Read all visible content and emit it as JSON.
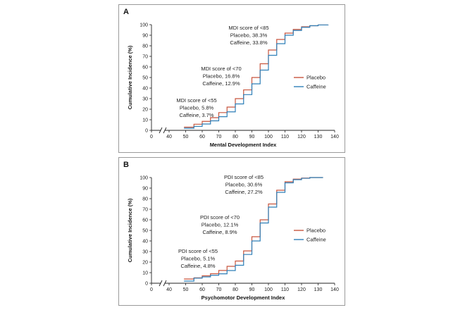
{
  "chart_data": [
    {
      "panel_label": "A",
      "type": "line",
      "step": true,
      "xlabel": "Mental Development Index",
      "ylabel": "Cumulative Incidence (%)",
      "xlim": [
        0,
        140
      ],
      "ylim": [
        0,
        100
      ],
      "x_ticks": [
        0,
        40,
        50,
        60,
        70,
        80,
        90,
        100,
        110,
        120,
        130,
        140
      ],
      "y_ticks": [
        0,
        10,
        20,
        30,
        40,
        50,
        60,
        70,
        80,
        90,
        100
      ],
      "axis_break_between": [
        0,
        40
      ],
      "grid": false,
      "legend_position": "right",
      "colors": {
        "Placebo": "#c8553d",
        "Caffeine": "#2e7fb8"
      },
      "series": [
        {
          "name": "Placebo",
          "x": [
            49,
            55,
            60,
            65,
            70,
            75,
            80,
            85,
            90,
            95,
            100,
            105,
            110,
            115,
            120,
            125,
            130,
            136
          ],
          "y": [
            3,
            5.8,
            8.5,
            12,
            16.8,
            22,
            30,
            38.3,
            50,
            63,
            76,
            86,
            92,
            95.5,
            98,
            99,
            99.7,
            100
          ]
        },
        {
          "name": "Caffeine",
          "x": [
            49,
            55,
            60,
            65,
            70,
            75,
            80,
            85,
            90,
            95,
            100,
            105,
            110,
            115,
            120,
            125,
            130,
            136
          ],
          "y": [
            2,
            3.7,
            6,
            9,
            12.9,
            17.5,
            25,
            33.8,
            44,
            57,
            71,
            82,
            90,
            94.5,
            97.5,
            99,
            99.7,
            100
          ]
        }
      ],
      "annotations": [
        {
          "lines": [
            "MDI score of <85",
            "Placebo, 38.3%",
            "Caffeine, 33.8%"
          ]
        },
        {
          "lines": [
            "MDI score of <70",
            "Placebo, 16.8%",
            "Caffeine, 12.9%"
          ]
        },
        {
          "lines": [
            "MDI score of <55",
            "Placebo, 5.8%",
            "Caffeine, 3.7%"
          ]
        }
      ]
    },
    {
      "panel_label": "B",
      "type": "line",
      "step": true,
      "xlabel": "Psychomotor Development Index",
      "ylabel": "Cumulative Incidence (%)",
      "xlim": [
        0,
        140
      ],
      "ylim": [
        0,
        100
      ],
      "x_ticks": [
        0,
        40,
        50,
        60,
        70,
        80,
        90,
        100,
        110,
        120,
        130,
        140
      ],
      "y_ticks": [
        0,
        10,
        20,
        30,
        40,
        50,
        60,
        70,
        80,
        90,
        100
      ],
      "axis_break_between": [
        0,
        40
      ],
      "grid": false,
      "legend_position": "right",
      "colors": {
        "Placebo": "#c8553d",
        "Caffeine": "#2e7fb8"
      },
      "series": [
        {
          "name": "Placebo",
          "x": [
            49,
            55,
            60,
            65,
            70,
            75,
            80,
            85,
            90,
            95,
            100,
            105,
            110,
            115,
            120,
            125,
            130,
            133
          ],
          "y": [
            4,
            5.1,
            7,
            9,
            12.1,
            16,
            21,
            30.6,
            44,
            60,
            75,
            88,
            96,
            98.5,
            99.5,
            100,
            100,
            100
          ]
        },
        {
          "name": "Caffeine",
          "x": [
            49,
            55,
            60,
            65,
            70,
            75,
            80,
            85,
            90,
            95,
            100,
            105,
            110,
            115,
            120,
            125,
            130,
            133
          ],
          "y": [
            2,
            4.8,
            6,
            7.5,
            8.9,
            12,
            17,
            27.2,
            40,
            57,
            72,
            86,
            95,
            98,
            99.3,
            100,
            100,
            100
          ]
        }
      ],
      "annotations": [
        {
          "lines": [
            "PDI score of <85",
            "Placebo, 30.6%",
            "Caffeine, 27.2%"
          ]
        },
        {
          "lines": [
            "PDI score of <70",
            "Placebo, 12.1%",
            "Caffeine, 8.9%"
          ]
        },
        {
          "lines": [
            "PDI score of <55",
            "Placebo, 5.1%",
            "Caffeine, 4.8%"
          ]
        }
      ]
    }
  ]
}
